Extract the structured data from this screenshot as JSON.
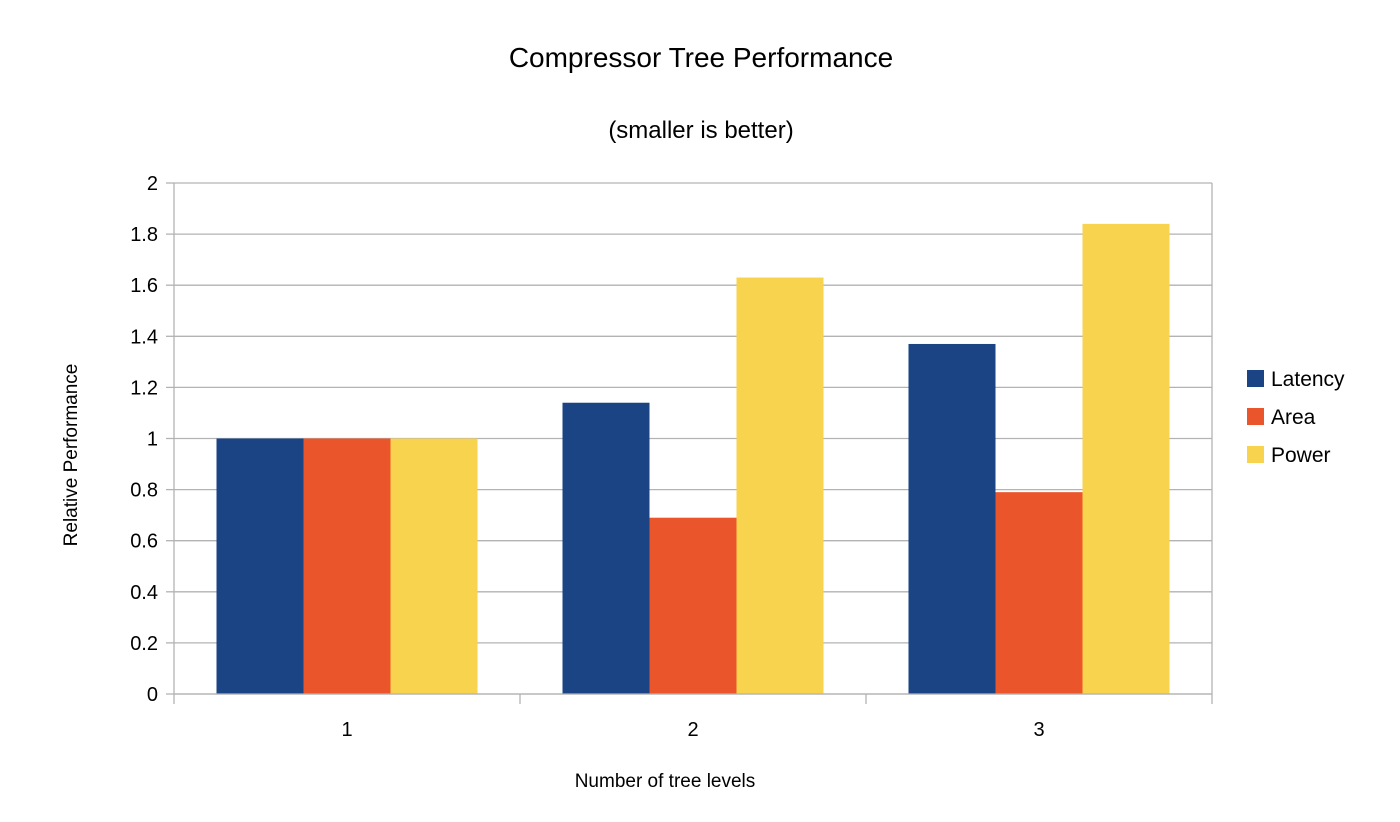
{
  "chart_data": {
    "type": "bar",
    "title": "Compressor Tree Performance",
    "subtitle": "(smaller is better)",
    "xlabel": "Number of tree levels",
    "ylabel": "Relative Performance",
    "categories": [
      "1",
      "2",
      "3"
    ],
    "series": [
      {
        "name": "Latency",
        "values": [
          1.0,
          1.14,
          1.37
        ],
        "color": "#1b4484"
      },
      {
        "name": "Area",
        "values": [
          1.0,
          0.69,
          0.79
        ],
        "color": "#eb552b"
      },
      {
        "name": "Power",
        "values": [
          1.0,
          1.63,
          1.84
        ],
        "color": "#f8d34e"
      }
    ],
    "ylim": [
      0,
      2
    ],
    "yticks": [
      "0",
      "0.2",
      "0.4",
      "0.6",
      "0.8",
      "1",
      "1.2",
      "1.4",
      "1.6",
      "1.8",
      "2"
    ],
    "grid": true,
    "legend_position": "right",
    "gridline_color": "#b3b3b3"
  }
}
